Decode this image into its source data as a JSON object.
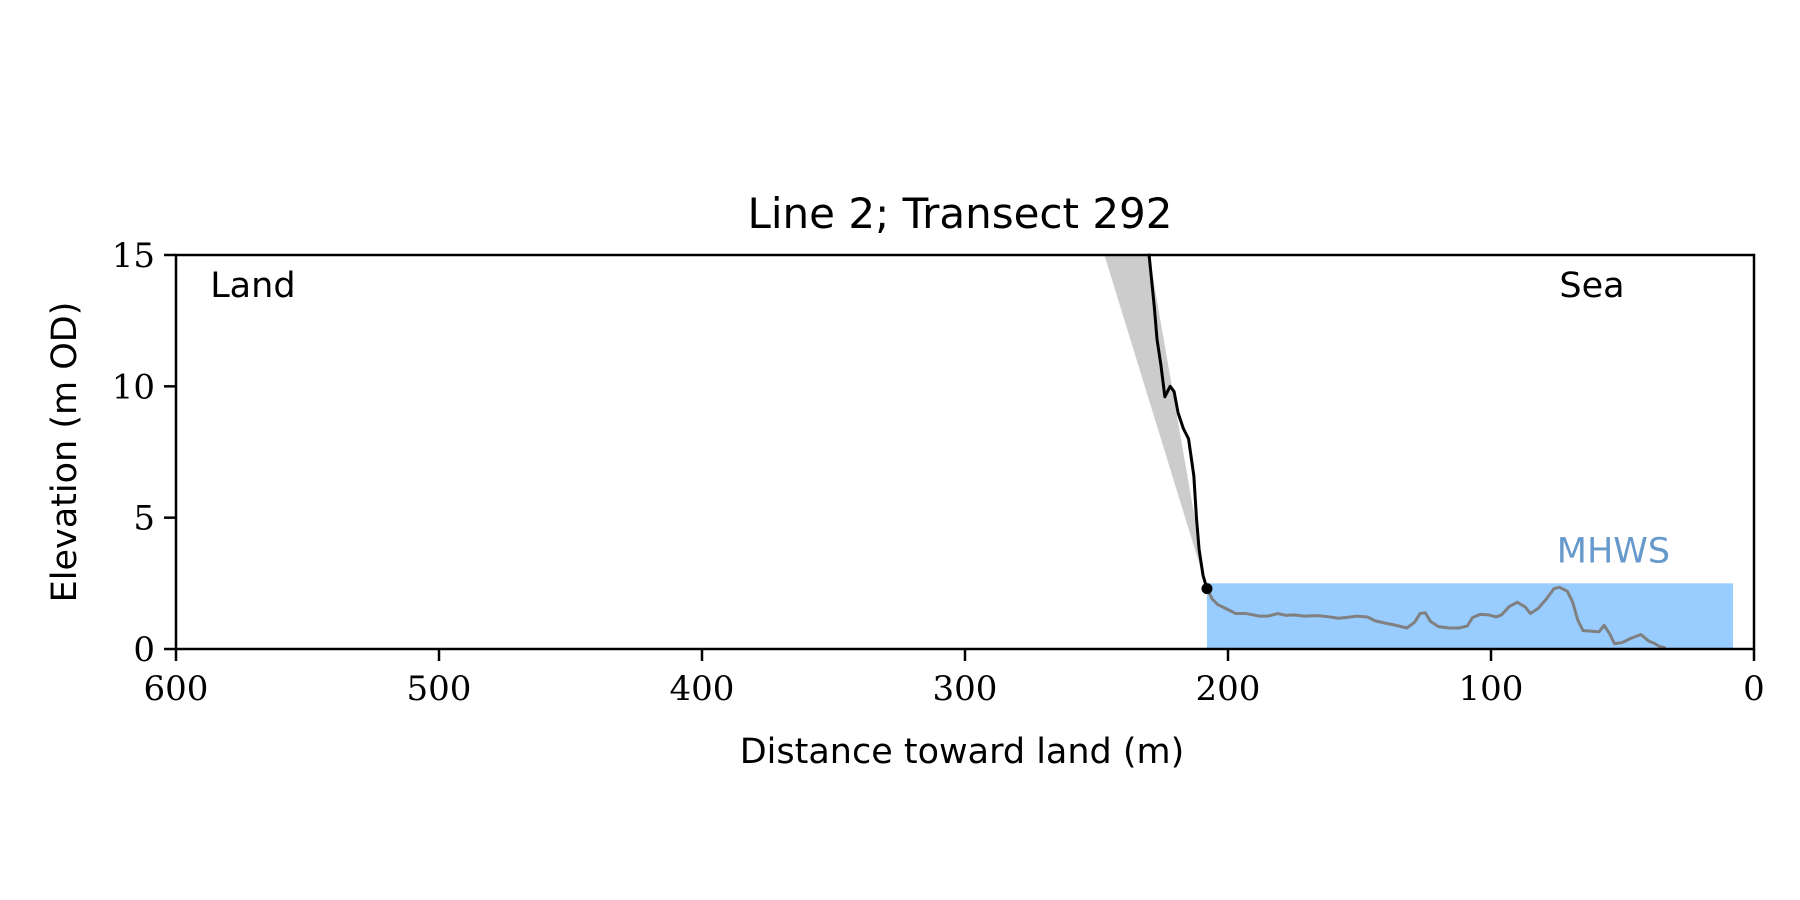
{
  "chart_data": {
    "type": "line",
    "title": "Line 2; Transect 292",
    "xlabel": "Distance toward land (m)",
    "ylabel": "Elevation (m OD)",
    "xlim": [
      600,
      0
    ],
    "ylim": [
      0,
      15
    ],
    "x_ticks": [
      600,
      500,
      400,
      300,
      200,
      100,
      0
    ],
    "y_ticks": [
      0,
      5,
      10,
      15
    ],
    "grid": false,
    "legend": "none",
    "annotations": [
      {
        "text": "Land",
        "x": 587,
        "y": 13.4
      },
      {
        "text": "Sea",
        "x": 74,
        "y": 13.4
      },
      {
        "text": "MHWS",
        "x": 75,
        "y": 3.3,
        "color": "#6699cc"
      }
    ],
    "mhws": {
      "level": 2.5,
      "x_range": [
        208,
        8
      ],
      "color": "#99ccff"
    },
    "cliff_envelope": {
      "color": "#cccccc",
      "points": [
        {
          "x": 247,
          "y": 15
        },
        {
          "x": 230,
          "y": 15
        },
        {
          "x": 208,
          "y": 2.3
        }
      ]
    },
    "series": [
      {
        "role": "cliff",
        "color": "#000000",
        "points": [
          [
            230,
            15
          ],
          [
            228,
            13
          ],
          [
            227,
            11.8
          ],
          [
            225.5,
            10.8
          ],
          [
            224,
            9.6
          ],
          [
            222,
            10.0
          ],
          [
            220.5,
            9.8
          ],
          [
            219,
            9.0
          ],
          [
            217,
            8.4
          ],
          [
            215,
            8.0
          ],
          [
            213,
            6.6
          ],
          [
            212,
            5.0
          ],
          [
            211,
            3.8
          ],
          [
            209.5,
            2.8
          ],
          [
            208,
            2.3
          ]
        ]
      },
      {
        "role": "foreshore",
        "color": "#808080",
        "points": [
          [
            208,
            2.3
          ],
          [
            206,
            1.9
          ],
          [
            204,
            1.7
          ],
          [
            200,
            1.5
          ],
          [
            197,
            1.35
          ],
          [
            193,
            1.35
          ],
          [
            188,
            1.25
          ],
          [
            185,
            1.25
          ],
          [
            181,
            1.35
          ],
          [
            178,
            1.28
          ],
          [
            175,
            1.3
          ],
          [
            171,
            1.25
          ],
          [
            166,
            1.27
          ],
          [
            162,
            1.23
          ],
          [
            158,
            1.17
          ],
          [
            155,
            1.2
          ],
          [
            151,
            1.25
          ],
          [
            147,
            1.22
          ],
          [
            144,
            1.07
          ],
          [
            140,
            0.98
          ],
          [
            136,
            0.9
          ],
          [
            132,
            0.8
          ],
          [
            129,
            1.02
          ],
          [
            127,
            1.35
          ],
          [
            125,
            1.38
          ],
          [
            123,
            1.05
          ],
          [
            120,
            0.85
          ],
          [
            116,
            0.8
          ],
          [
            112,
            0.8
          ],
          [
            109,
            0.88
          ],
          [
            107,
            1.2
          ],
          [
            104,
            1.32
          ],
          [
            101,
            1.3
          ],
          [
            98,
            1.22
          ],
          [
            96,
            1.3
          ],
          [
            93,
            1.62
          ],
          [
            90,
            1.78
          ],
          [
            87,
            1.6
          ],
          [
            85,
            1.35
          ],
          [
            82,
            1.55
          ],
          [
            79,
            1.9
          ],
          [
            76,
            2.3
          ],
          [
            74,
            2.35
          ],
          [
            71,
            2.2
          ],
          [
            69,
            1.8
          ],
          [
            67,
            1.1
          ],
          [
            65,
            0.7
          ],
          [
            62,
            0.68
          ],
          [
            59,
            0.65
          ],
          [
            57,
            0.9
          ],
          [
            55,
            0.6
          ],
          [
            53,
            0.2
          ],
          [
            50,
            0.25
          ],
          [
            47,
            0.4
          ],
          [
            43,
            0.55
          ],
          [
            40,
            0.3
          ],
          [
            38,
            0.22
          ],
          [
            36,
            0.1
          ],
          [
            34,
            0.05
          ]
        ]
      }
    ],
    "markers": [
      {
        "x": 208,
        "y": 2.3,
        "color": "#000000"
      }
    ]
  }
}
